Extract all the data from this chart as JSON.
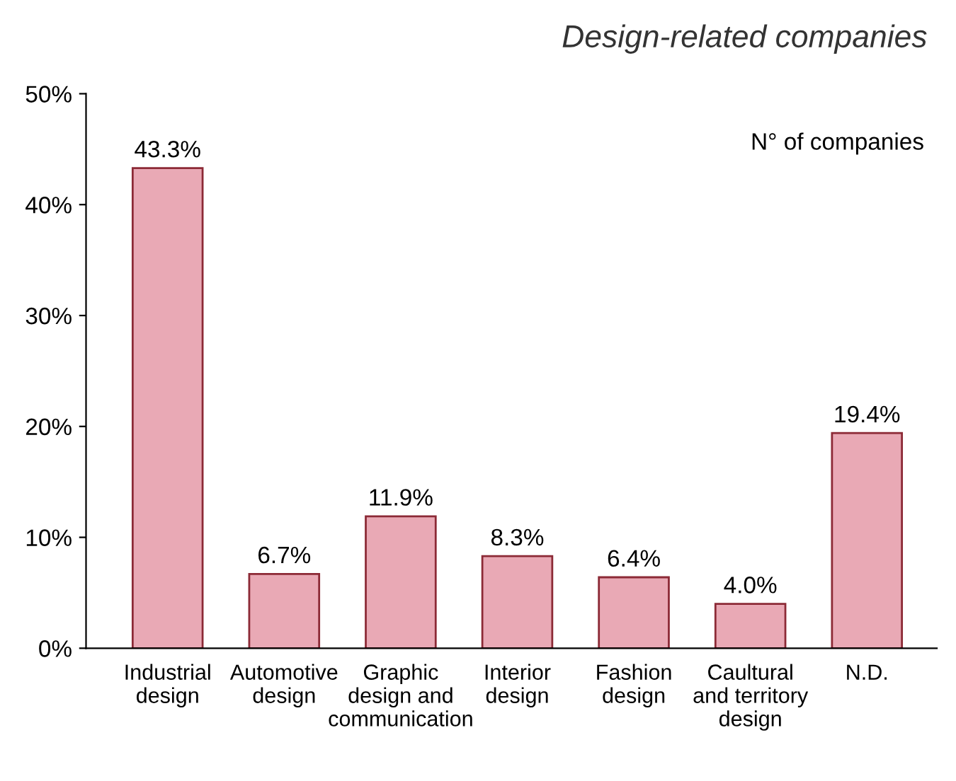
{
  "chart_data": {
    "type": "bar",
    "title": "Design-related companies",
    "categories": [
      "Industrial\ndesign",
      "Automotive\ndesign",
      "Graphic\ndesign and\ncommunication",
      "Interior\ndesign",
      "Fashion\ndesign",
      "Caultural\nand territory\ndesign",
      "N.D."
    ],
    "values": [
      43.3,
      6.7,
      11.9,
      8.3,
      6.4,
      4.0,
      19.4
    ],
    "value_labels": [
      "43.3%",
      "6.7%",
      "11.9%",
      "8.3%",
      "6.4%",
      "4.0%",
      "19.4%"
    ],
    "color": "#e9a9b5",
    "ylim": [
      0,
      50
    ],
    "yticks": [
      {
        "value": 0,
        "label": "0%"
      },
      {
        "value": 10,
        "label": "10%"
      },
      {
        "value": 20,
        "label": "20%"
      },
      {
        "value": 30,
        "label": "30%"
      },
      {
        "value": 40,
        "label": "40%"
      },
      {
        "value": 50,
        "label": "50%"
      }
    ],
    "annotations": [
      "N° of companies"
    ],
    "grid": false,
    "legend": false
  }
}
